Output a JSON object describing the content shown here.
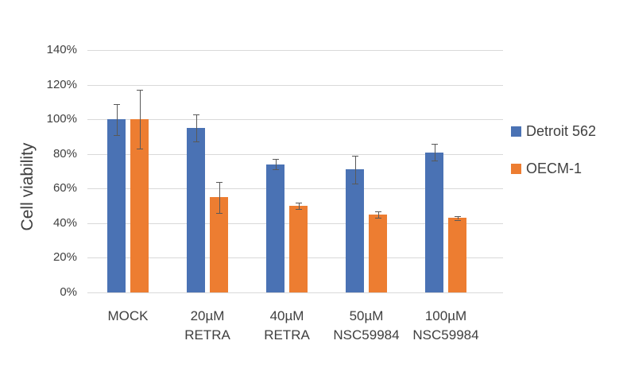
{
  "chart_data": {
    "type": "bar",
    "title": "",
    "xlabel": "",
    "ylabel": "Cell viability",
    "categories": [
      "MOCK",
      "20µM\nRETRA",
      "40µM\nRETRA",
      "50µM\nNSC59984",
      "100µM\nNSC59984"
    ],
    "series": [
      {
        "name": "Detroit 562",
        "color": "#4A72B4",
        "values": [
          100,
          95,
          74,
          71,
          81
        ],
        "errors": [
          9,
          8,
          3,
          8,
          5
        ]
      },
      {
        "name": "OECM-1",
        "color": "#ED7D31",
        "values": [
          100,
          55,
          50,
          45,
          43
        ],
        "errors": [
          17,
          9,
          2,
          2,
          1
        ]
      }
    ],
    "y_axis": {
      "min": 0,
      "max": 140,
      "step": 20,
      "unit": "%",
      "tick_labels": [
        "0%",
        "20%",
        "40%",
        "60%",
        "80%",
        "100%",
        "120%",
        "140%"
      ]
    },
    "grid": true,
    "legend_position": "right",
    "colors": {
      "gridline": "#d9d9d9",
      "axis_line": "#d9d9d9",
      "error_bar": "#595959",
      "text": "#404040"
    }
  }
}
